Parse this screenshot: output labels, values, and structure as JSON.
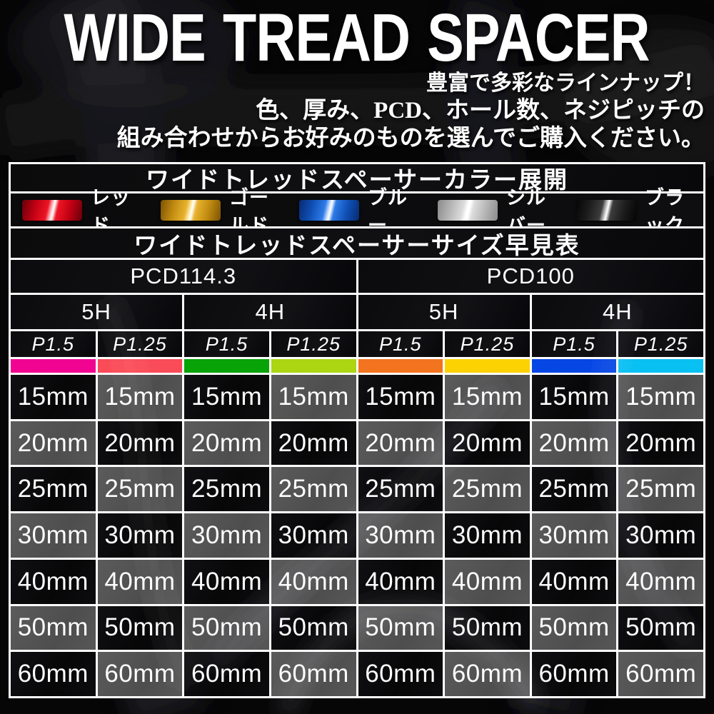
{
  "title": "WIDE TREAD SPACER",
  "intro_lines": [
    "豊富で多彩なラインナップ！",
    "色、厚み、PCD、ホール数、ネジピッチの",
    "組み合わせからお好みのものを選んでご購入ください。"
  ],
  "color_section": {
    "header": "ワイドトレッドスペーサーカラー展開",
    "swatches": [
      {
        "id": "red",
        "label": "レッド",
        "colors": [
          "#66000a",
          "#c00012",
          "#ee1525",
          "#ffc9ce"
        ]
      },
      {
        "id": "gold",
        "label": "ゴールド",
        "colors": [
          "#7c5205",
          "#c08a10",
          "#e8b22e",
          "#ffedb0"
        ]
      },
      {
        "id": "blue",
        "label": "ブルー",
        "colors": [
          "#082a70",
          "#0f4fb4",
          "#2e7be8",
          "#cfe2ff"
        ]
      },
      {
        "id": "silver",
        "label": "シルバー",
        "colors": [
          "#8a8a8a",
          "#b5b5b5",
          "#dcdcdc",
          "#ffffff"
        ]
      },
      {
        "id": "black",
        "label": "ブラック",
        "colors": [
          "#050505",
          "#1c1c1c",
          "#3c3c3c",
          "#cccccc"
        ]
      }
    ]
  },
  "size_section": {
    "header": "ワイドトレッドスペーサーサイズ早見表",
    "pcds": [
      {
        "label": "PCD114.3",
        "holes": [
          {
            "label": "5H",
            "pitches": [
              {
                "label": "P1.5",
                "bar_color": "#f20492"
              },
              {
                "label": "P1.25",
                "bar_color": "#fa4b58"
              }
            ]
          },
          {
            "label": "4H",
            "pitches": [
              {
                "label": "P1.5",
                "bar_color": "#07a307"
              },
              {
                "label": "P1.25",
                "bar_color": "#abd611"
              }
            ]
          }
        ]
      },
      {
        "label": "PCD100",
        "holes": [
          {
            "label": "5H",
            "pitches": [
              {
                "label": "P1.5",
                "bar_color": "#f2741e"
              },
              {
                "label": "P1.25",
                "bar_color": "#fcd203"
              }
            ]
          },
          {
            "label": "4H",
            "pitches": [
              {
                "label": "P1.5",
                "bar_color": "#0546e4"
              },
              {
                "label": "P1.25",
                "bar_color": "#09c0f2"
              }
            ]
          }
        ]
      }
    ],
    "sizes": [
      "15mm",
      "20mm",
      "25mm",
      "30mm",
      "40mm",
      "50mm",
      "60mm"
    ],
    "cell_colors": {
      "dark": "#0a0a0b",
      "gray": "#545454",
      "grid": "#ffffff"
    }
  }
}
